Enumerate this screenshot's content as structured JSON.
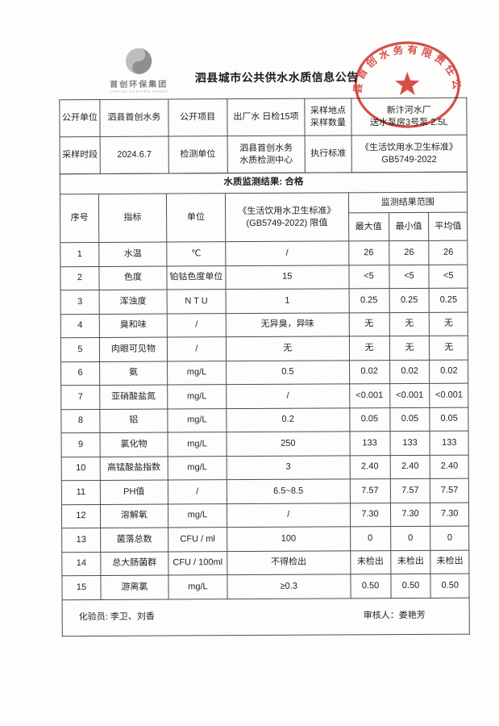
{
  "page": {
    "title": "泗县城市公共供水水质信息公告",
    "logo_name": "首创环保集团",
    "logo_subtext": "CAPITAL ECO-PRO GROUP",
    "seal_company": "泗县首创水务有限责任公司",
    "seal_color": "#cf352e"
  },
  "info": {
    "open_unit_label": "公开单位",
    "open_unit_value": "泗县首创水务",
    "open_item_label": "公开项目",
    "open_item_value": "出厂水 日检15项",
    "sample_label": "采样地点\n采样数量",
    "sample_value": "新汴河水厂\n送水泵房3号泵  2.5L",
    "period_label": "采样时段",
    "period_value": "2024.6.7",
    "test_unit_label": "检测单位",
    "test_unit_value": "泗县首创水务\n水质检测中心",
    "standard_label": "执行标准",
    "standard_value": "《生活饮用水卫生标准》\nGB5749-2022"
  },
  "results": {
    "section_title": "水质监测结果: 合格",
    "columns": {
      "no": "序号",
      "indicator": "指标",
      "unit": "单位",
      "limit": "《生活饮用水卫生标准》\n(GB5749-2022) 限值",
      "range": "监测结果范围",
      "max": "最大值",
      "min": "最小值",
      "avg": "平均值"
    },
    "rows": [
      [
        "1",
        "水温",
        "℃",
        "/",
        "26",
        "26",
        "26"
      ],
      [
        "2",
        "色度",
        "铂钴色度单位",
        "15",
        "<5",
        "<5",
        "<5"
      ],
      [
        "3",
        "浑浊度",
        "N T U",
        "1",
        "0.25",
        "0.25",
        "0.25"
      ],
      [
        "4",
        "臭和味",
        "/",
        "无异臭，异味",
        "无",
        "无",
        "无"
      ],
      [
        "5",
        "肉眼可见物",
        "/",
        "无",
        "无",
        "无",
        "无"
      ],
      [
        "6",
        "氨",
        "mg/L",
        "0.5",
        "0.02",
        "0.02",
        "0.02"
      ],
      [
        "7",
        "亚硝酸盐氮",
        "mg/L",
        "/",
        "<0.001",
        "<0.001",
        "<0.001"
      ],
      [
        "8",
        "铝",
        "mg/L",
        "0.2",
        "0.05",
        "0.05",
        "0.05"
      ],
      [
        "9",
        "氯化物",
        "mg/L",
        "250",
        "133",
        "133",
        "133"
      ],
      [
        "10",
        "高锰酸盐指数",
        "mg/L",
        "3",
        "2.40",
        "2.40",
        "2.40"
      ],
      [
        "11",
        "PH值",
        "/",
        "6.5~8.5",
        "7.57",
        "7.57",
        "7.57"
      ],
      [
        "12",
        "溶解氧",
        "mg/L",
        "/",
        "7.30",
        "7.30",
        "7.30"
      ],
      [
        "13",
        "菌落总数",
        "CFU / ml",
        "100",
        "0",
        "0",
        "0"
      ],
      [
        "14",
        "总大肠菌群",
        "CFU / 100ml",
        "不得检出",
        "未检出",
        "未检出",
        "未检出"
      ],
      [
        "15",
        "游离氯",
        "mg/L",
        "≥0.3",
        "0.50",
        "0.50",
        "0.50"
      ]
    ]
  },
  "footer": {
    "tester": "化验员: 李卫、刘香",
    "reviewer": "审核人：娄艳芳"
  }
}
